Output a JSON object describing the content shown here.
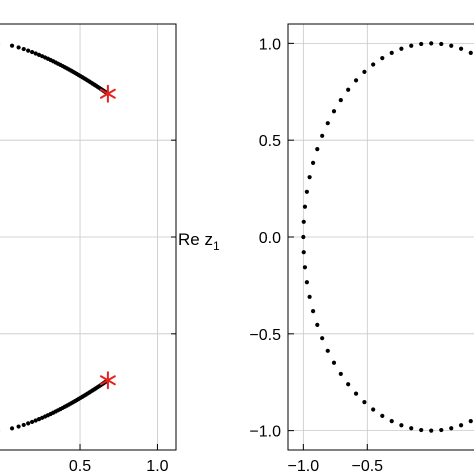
{
  "chart_data": [
    {
      "type": "scatter",
      "title": "",
      "xlabel": "Re z",
      "xlabel_subscript": "1",
      "ylabel": "",
      "xlim": [
        -0.03,
        1.12
      ],
      "ylim": [
        -1.1,
        1.1
      ],
      "xticks": [
        {
          "value": 0.5,
          "label": "0.5"
        },
        {
          "value": 1.0,
          "label": "1.0"
        }
      ],
      "yticks": [],
      "grid": true,
      "visible_x_range": [
        -0.03,
        0.69
      ],
      "series": [
        {
          "marker": "dot",
          "color": "#000000",
          "curve": "upper-arc-from-x-0-y-1.0-to-x-0.68-y-0.74"
        },
        {
          "marker": "dot",
          "color": "#000000",
          "curve": "lower-arc-from-x-0-y-minus-1.0-to-x-0.68-y-minus-0.74"
        },
        {
          "marker": "star",
          "color": "#e8211d",
          "x": [
            0.68,
            0.68
          ],
          "y": [
            0.74,
            -0.74
          ]
        }
      ]
    },
    {
      "type": "scatter",
      "title": "",
      "xlabel": "",
      "ylabel": "",
      "xlim": [
        -1.12,
        0.35
      ],
      "ylim": [
        -1.1,
        1.1
      ],
      "xticks": [
        {
          "value": -1.0,
          "label": "−1.0"
        },
        {
          "value": -0.5,
          "label": "−0.5"
        }
      ],
      "yticks": [
        {
          "value": 1.0,
          "label": "1.0"
        },
        {
          "value": 0.5,
          "label": "0.5"
        },
        {
          "value": 0.0,
          "label": "0.0"
        },
        {
          "value": -0.5,
          "label": "−0.5"
        },
        {
          "value": -1.0,
          "label": "−1.0"
        }
      ],
      "grid": true,
      "series": [
        {
          "marker": "dot",
          "color": "#000000",
          "curve": "unit-circle-left-half",
          "theta_deg": [
            63,
            297
          ]
        }
      ]
    }
  ]
}
